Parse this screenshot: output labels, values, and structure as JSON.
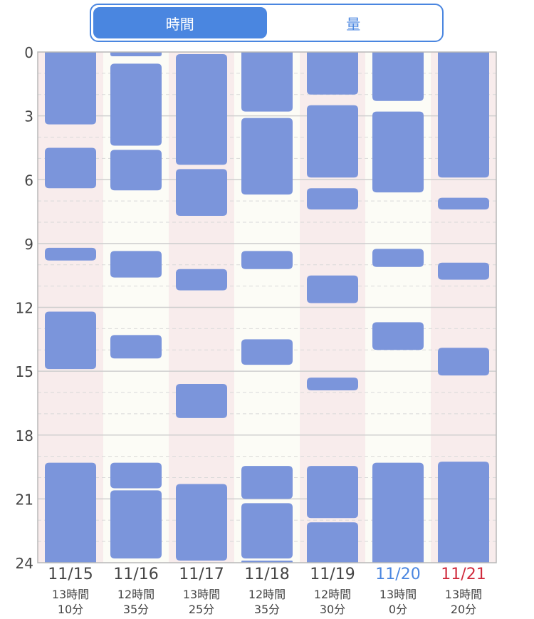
{
  "toggle": {
    "options": [
      "時間",
      "量"
    ],
    "selected": "時間"
  },
  "colors": {
    "sleep_block": "#7b95db",
    "weekday_text": "#444444",
    "saturday_text": "#4a86e0",
    "sunday_text": "#d02a3c",
    "alt_column_bg": "#f8ecec",
    "column_bg": "#fcfcf6",
    "accent": "#4a86e0"
  },
  "chart_data": {
    "type": "range-bar",
    "y_axis": {
      "ticks": [
        0,
        3,
        6,
        9,
        12,
        15,
        18,
        21,
        24
      ],
      "range": [
        0,
        24
      ],
      "unit": "hour"
    },
    "days": [
      {
        "date": "11/15",
        "total": [
          "13時間",
          "10分"
        ],
        "day_type": "weekday",
        "sleep": [
          [
            0,
            3.4
          ],
          [
            4.5,
            6.4
          ],
          [
            9.2,
            9.8
          ],
          [
            12.2,
            14.9
          ],
          [
            19.3,
            24
          ]
        ]
      },
      {
        "date": "11/16",
        "total": [
          "12時間",
          "35分"
        ],
        "day_type": "weekday",
        "sleep": [
          [
            0,
            0.2
          ],
          [
            0.55,
            4.4
          ],
          [
            4.6,
            6.5
          ],
          [
            9.35,
            10.6
          ],
          [
            13.3,
            14.4
          ],
          [
            19.3,
            20.5
          ],
          [
            20.6,
            23.8
          ]
        ]
      },
      {
        "date": "11/17",
        "total": [
          "13時間",
          "25分"
        ],
        "day_type": "weekday",
        "sleep": [
          [
            0.1,
            5.3
          ],
          [
            5.5,
            7.7
          ],
          [
            10.2,
            11.2
          ],
          [
            15.6,
            17.2
          ],
          [
            20.3,
            23.9
          ]
        ]
      },
      {
        "date": "11/18",
        "total": [
          "12時間",
          "35分"
        ],
        "day_type": "weekday",
        "sleep": [
          [
            0,
            2.8
          ],
          [
            3.1,
            6.7
          ],
          [
            9.35,
            10.2
          ],
          [
            13.5,
            14.7
          ],
          [
            19.45,
            21.0
          ],
          [
            21.2,
            23.8
          ],
          [
            23.9,
            24
          ]
        ]
      },
      {
        "date": "11/19",
        "total": [
          "12時間",
          "30分"
        ],
        "day_type": "weekday",
        "sleep": [
          [
            0,
            2.0
          ],
          [
            2.5,
            5.9
          ],
          [
            6.4,
            7.4
          ],
          [
            10.5,
            11.8
          ],
          [
            15.3,
            15.9
          ],
          [
            19.45,
            21.9
          ],
          [
            22.1,
            24
          ]
        ]
      },
      {
        "date": "11/20",
        "total": [
          "13時間",
          "0分"
        ],
        "day_type": "saturday",
        "sleep": [
          [
            0,
            2.3
          ],
          [
            2.8,
            6.6
          ],
          [
            9.25,
            10.1
          ],
          [
            12.7,
            14.0
          ],
          [
            19.3,
            24
          ]
        ]
      },
      {
        "date": "11/21",
        "total": [
          "13時間",
          "20分"
        ],
        "day_type": "sunday",
        "sleep": [
          [
            0,
            5.9
          ],
          [
            6.85,
            7.4
          ],
          [
            9.9,
            10.7
          ],
          [
            13.9,
            15.2
          ],
          [
            19.25,
            24
          ]
        ]
      }
    ]
  }
}
